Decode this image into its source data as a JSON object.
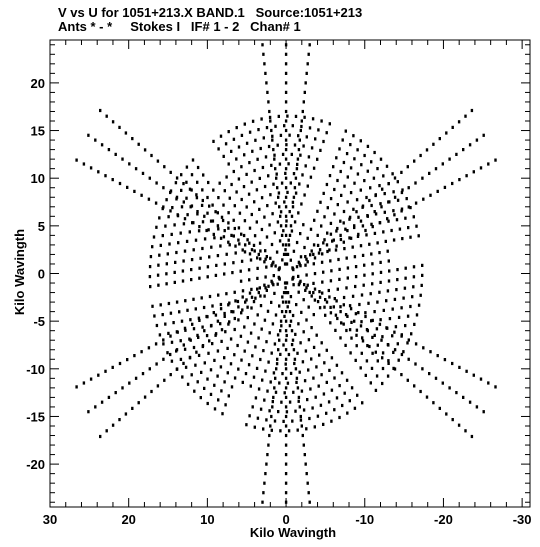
{
  "chart_data": {
    "type": "scatter",
    "title": "V vs U for 1051+213.X BAND.1   Source:1051+213",
    "subtitle": "Ants * - *     Stokes I   IF# 1 - 2   Chan# 1",
    "xlabel": "Kilo Wavingth",
    "ylabel": "Kilo Wavingth",
    "xlim": [
      30,
      -31
    ],
    "ylim": [
      -24.5,
      24.5
    ],
    "x_inverted": true,
    "grid": false,
    "marker_color": "#000000",
    "xticks": [
      30,
      20,
      10,
      0,
      -10,
      -20,
      -30
    ],
    "yticks": [
      20,
      15,
      10,
      5,
      0,
      -5,
      -10,
      -15,
      -20
    ],
    "x_tick_labels": [
      "30",
      "20",
      "10",
      "0",
      "-10",
      "-20",
      "-30"
    ],
    "y_tick_labels": [
      "20",
      "15",
      "10",
      "5",
      "0",
      "-5",
      "-10",
      "-15",
      "-20"
    ],
    "uv_tracks": {
      "description_free_params": true,
      "ellipse_radii": [
        1.5,
        2.5,
        3.5,
        4.5,
        5.5,
        6.5,
        7.5,
        8.5,
        9.5,
        10.5,
        11.5,
        12.5,
        13.5,
        14.5,
        15.5,
        16.5
      ],
      "radial_arms_deg": [
        90,
        30,
        150,
        270,
        210,
        330
      ],
      "arm_max_radius": [
        24,
        29,
        29,
        24,
        29,
        29
      ]
    }
  }
}
